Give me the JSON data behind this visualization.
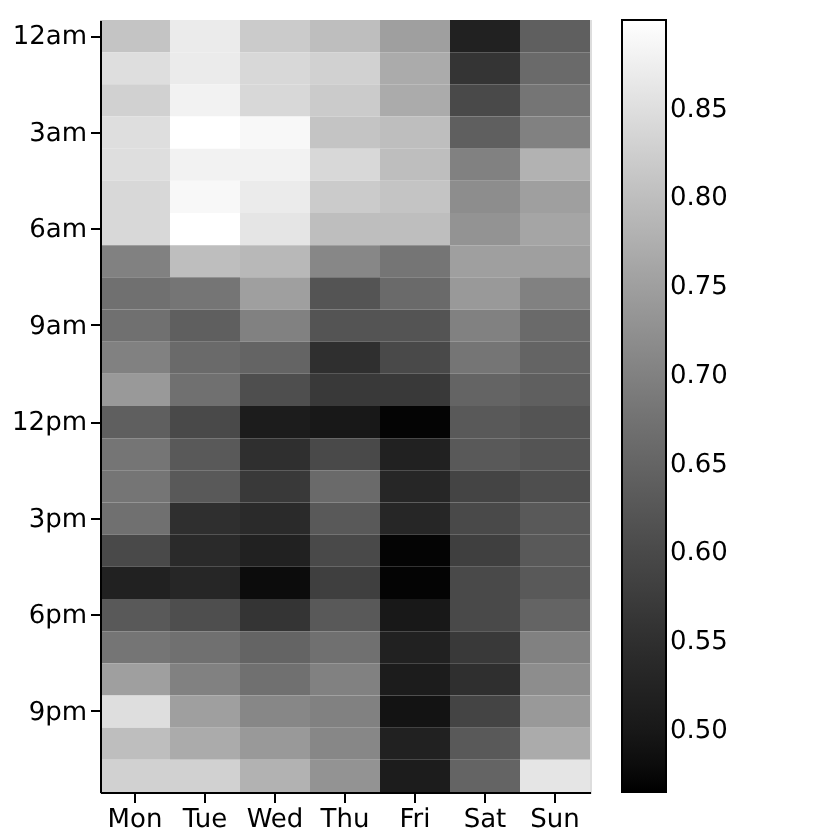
{
  "chart_data": {
    "type": "heatmap",
    "categories": [
      "Mon",
      "Tue",
      "Wed",
      "Thu",
      "Fri",
      "Sat",
      "Sun"
    ],
    "y_categories": [
      "12am",
      null,
      null,
      "3am",
      null,
      null,
      "6am",
      null,
      null,
      "9am",
      null,
      null,
      "12pm",
      null,
      null,
      "3pm",
      null,
      null,
      "6pm",
      null,
      null,
      "9pm",
      null,
      null
    ],
    "cells": [
      [
        0.81,
        0.87,
        0.82,
        0.8,
        0.75,
        0.52,
        0.64
      ],
      [
        0.85,
        0.87,
        0.84,
        0.83,
        0.77,
        0.56,
        0.66
      ],
      [
        0.83,
        0.88,
        0.84,
        0.82,
        0.77,
        0.6,
        0.68
      ],
      [
        0.85,
        0.9,
        0.89,
        0.81,
        0.8,
        0.64,
        0.7
      ],
      [
        0.85,
        0.88,
        0.88,
        0.84,
        0.8,
        0.7,
        0.78
      ],
      [
        0.84,
        0.89,
        0.87,
        0.82,
        0.81,
        0.72,
        0.75
      ],
      [
        0.84,
        0.9,
        0.86,
        0.8,
        0.8,
        0.73,
        0.76
      ],
      [
        0.7,
        0.8,
        0.79,
        0.71,
        0.68,
        0.75,
        0.75
      ],
      [
        0.67,
        0.68,
        0.75,
        0.62,
        0.66,
        0.74,
        0.7
      ],
      [
        0.67,
        0.64,
        0.7,
        0.62,
        0.62,
        0.7,
        0.66
      ],
      [
        0.7,
        0.66,
        0.65,
        0.55,
        0.6,
        0.68,
        0.65
      ],
      [
        0.74,
        0.67,
        0.61,
        0.57,
        0.57,
        0.65,
        0.64
      ],
      [
        0.64,
        0.6,
        0.51,
        0.5,
        0.47,
        0.63,
        0.62
      ],
      [
        0.68,
        0.63,
        0.55,
        0.6,
        0.52,
        0.63,
        0.62
      ],
      [
        0.68,
        0.63,
        0.57,
        0.66,
        0.53,
        0.59,
        0.61
      ],
      [
        0.67,
        0.55,
        0.54,
        0.63,
        0.53,
        0.6,
        0.63
      ],
      [
        0.6,
        0.54,
        0.52,
        0.6,
        0.47,
        0.58,
        0.63
      ],
      [
        0.52,
        0.53,
        0.48,
        0.58,
        0.47,
        0.6,
        0.63
      ],
      [
        0.63,
        0.61,
        0.56,
        0.63,
        0.5,
        0.6,
        0.65
      ],
      [
        0.68,
        0.67,
        0.65,
        0.67,
        0.52,
        0.57,
        0.7
      ],
      [
        0.75,
        0.7,
        0.67,
        0.7,
        0.51,
        0.55,
        0.72
      ],
      [
        0.85,
        0.75,
        0.71,
        0.7,
        0.49,
        0.59,
        0.74
      ],
      [
        0.8,
        0.77,
        0.74,
        0.71,
        0.52,
        0.63,
        0.77
      ],
      [
        0.83,
        0.83,
        0.78,
        0.73,
        0.51,
        0.65,
        0.86
      ]
    ],
    "clim": [
      0.465,
      0.9
    ],
    "cticks": [
      {
        "value": 0.5,
        "label": "0.50"
      },
      0.55,
      {
        "value": 0.6,
        "label": "0.60"
      },
      0.65,
      {
        "value": 0.7,
        "label": "0.70"
      },
      0.75,
      {
        "value": 0.8,
        "label": "0.80"
      },
      0.85
    ]
  }
}
